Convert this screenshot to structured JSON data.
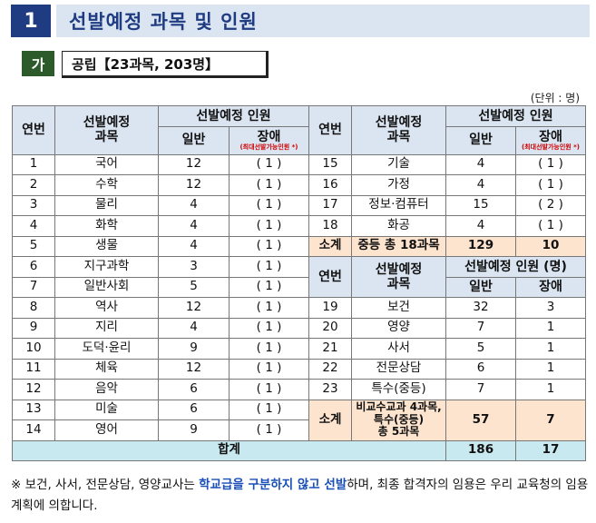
{
  "title": {
    "number": "1",
    "text": "선발예정 과목 및 인원"
  },
  "subtitle": {
    "label": "가",
    "text": "공립【23과목, 203명】"
  },
  "unit": "(단위 : 명)",
  "headers": {
    "no": "연번",
    "subject": "선발예정\n과목",
    "quota": "선발예정 인원",
    "general": "일반",
    "disabled": "장애",
    "disabled_note": "(최대선발가능인원 *)",
    "quota_right2": "선발예정 인원 (명)"
  },
  "left_rows": [
    {
      "no": "1",
      "subject": "국어",
      "general": "12",
      "disabled": "( 1 )"
    },
    {
      "no": "2",
      "subject": "수학",
      "general": "12",
      "disabled": "( 1 )"
    },
    {
      "no": "3",
      "subject": "물리",
      "general": "4",
      "disabled": "( 1 )"
    },
    {
      "no": "4",
      "subject": "화학",
      "general": "4",
      "disabled": "( 1 )"
    },
    {
      "no": "5",
      "subject": "생물",
      "general": "4",
      "disabled": "( 1 )"
    },
    {
      "no": "6",
      "subject": "지구과학",
      "general": "3",
      "disabled": "( 1 )"
    },
    {
      "no": "7",
      "subject": "일반사회",
      "general": "5",
      "disabled": "( 1 )"
    },
    {
      "no": "8",
      "subject": "역사",
      "general": "12",
      "disabled": "( 1 )"
    },
    {
      "no": "9",
      "subject": "지리",
      "general": "4",
      "disabled": "( 1 )"
    },
    {
      "no": "10",
      "subject": "도덕·윤리",
      "general": "9",
      "disabled": "( 1 )"
    },
    {
      "no": "11",
      "subject": "체육",
      "general": "12",
      "disabled": "( 1 )"
    },
    {
      "no": "12",
      "subject": "음악",
      "general": "6",
      "disabled": "( 1 )"
    },
    {
      "no": "13",
      "subject": "미술",
      "general": "6",
      "disabled": "( 1 )"
    },
    {
      "no": "14",
      "subject": "영어",
      "general": "9",
      "disabled": "( 1 )"
    }
  ],
  "right_rows_a": [
    {
      "no": "15",
      "subject": "기술",
      "general": "4",
      "disabled": "( 1 )"
    },
    {
      "no": "16",
      "subject": "가정",
      "general": "4",
      "disabled": "( 1 )"
    },
    {
      "no": "17",
      "subject": "정보·컴퓨터",
      "general": "15",
      "disabled": "( 2 )"
    },
    {
      "no": "18",
      "subject": "화공",
      "general": "4",
      "disabled": "( 1 )"
    }
  ],
  "subtotal_a": {
    "label": "소계",
    "desc": "중등 총 18과목",
    "general": "129",
    "disabled": "10"
  },
  "right_rows_b": [
    {
      "no": "19",
      "subject": "보건",
      "general": "32",
      "disabled": "3"
    },
    {
      "no": "20",
      "subject": "영양",
      "general": "7",
      "disabled": "1"
    },
    {
      "no": "21",
      "subject": "사서",
      "general": "5",
      "disabled": "1"
    },
    {
      "no": "22",
      "subject": "전문상담",
      "general": "6",
      "disabled": "1"
    },
    {
      "no": "23",
      "subject": "특수(중등)",
      "general": "7",
      "disabled": "1"
    }
  ],
  "subtotal_b": {
    "label": "소계",
    "desc": "비교수교과 4과목,\n특수(중등)\n총 5과목",
    "general": "57",
    "disabled": "7"
  },
  "total": {
    "label": "합계",
    "general": "186",
    "disabled": "17"
  },
  "footnote": {
    "prefix": "※ 보건, 사서, 전문상담, 영양교사는 ",
    "highlight": "학교급을 구분하지 않고 선발",
    "suffix": "하며, 최종 합격자의 임용은 우리 교육청의 임용 계획에 의합니다."
  },
  "colors": {
    "title_num_bg": "#1f3b82",
    "title_bg": "#dbe5f1",
    "sub_box_bg": "#2c5a2a",
    "header_bg": "#dbe5f1",
    "subtotal_bg": "#fde4cf",
    "total_bg": "#c7e9ef",
    "highlight": "#1a4fb8"
  }
}
